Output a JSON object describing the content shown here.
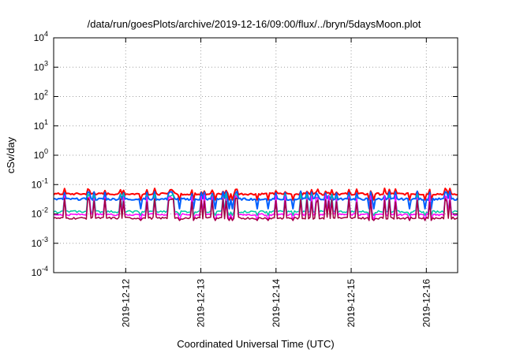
{
  "chart_data": {
    "type": "line",
    "title": "/data/run/goesPlots/archive/2019-12-16/09:00/flux/../bryn/5daysMoon.plot",
    "xlabel": "Coordinated Universal Time (UTC)",
    "ylabel": "cSv/day",
    "yscale": "log",
    "ylim": [
      0.0001,
      10000
    ],
    "xlim": [
      "2019-12-11T01:00",
      "2019-12-16T10:00"
    ],
    "grid": true,
    "y_ticks": [
      {
        "base": "10",
        "exp": "-4"
      },
      {
        "base": "10",
        "exp": "-3"
      },
      {
        "base": "10",
        "exp": "-2"
      },
      {
        "base": "10",
        "exp": "-1"
      },
      {
        "base": "10",
        "exp": "0"
      },
      {
        "base": "10",
        "exp": "1"
      },
      {
        "base": "10",
        "exp": "2"
      },
      {
        "base": "10",
        "exp": "3"
      },
      {
        "base": "10",
        "exp": "4"
      }
    ],
    "x_ticks": [
      "2019-12-12",
      "2019-12-13",
      "2019-12-14",
      "2019-12-15",
      "2019-12-16"
    ],
    "series": [
      {
        "color": "#ff0000",
        "base": 0.048,
        "spike": 0.075,
        "dip": 0.03
      },
      {
        "color": "#0060ff",
        "base": 0.032,
        "spike": 0.06,
        "dip": 0.015
      },
      {
        "color": "#00c8a0",
        "base": 0.012,
        "spike": 0.05,
        "dip": 0.009
      },
      {
        "color": "#ff00ff",
        "base": 0.0095,
        "spike": 0.045,
        "dip": 0.006
      },
      {
        "color": "#a00040",
        "base": 0.0072,
        "spike": 0.035,
        "dip": 0.006
      }
    ]
  }
}
